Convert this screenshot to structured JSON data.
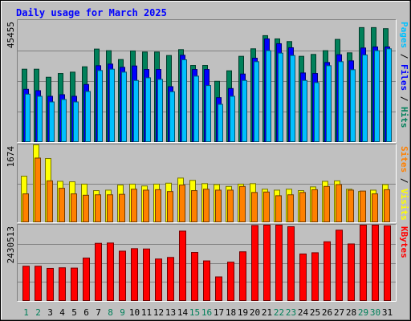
{
  "title": "Daily usage for March 2025",
  "colors": {
    "background": "#c0c0c0",
    "hits": "#00805a",
    "files": "#0000ff",
    "pages": "#00c0ff",
    "visits": "#ffff00",
    "sites": "#ff8000",
    "kbytes": "#ff0000",
    "weekday_label": "#000000",
    "weekend_label": "#00805a"
  },
  "days": [
    "1",
    "2",
    "3",
    "4",
    "5",
    "6",
    "7",
    "8",
    "9",
    "10",
    "11",
    "12",
    "13",
    "14",
    "15",
    "16",
    "17",
    "18",
    "19",
    "20",
    "21",
    "22",
    "23",
    "24",
    "25",
    "26",
    "27",
    "28",
    "29",
    "30",
    "31"
  ],
  "weekend_days": [
    1,
    2,
    8,
    9,
    15,
    16,
    22,
    23,
    29,
    30
  ],
  "chart_data": [
    {
      "type": "bar",
      "panel": "pages-files-hits",
      "ymax_label": "45455",
      "ylim": [
        0,
        45455
      ],
      "legend_labels": [
        "Pages",
        " / ",
        "Files",
        " / ",
        "Hits"
      ],
      "series": [
        {
          "name": "Hits",
          "values": [
            27300,
            27300,
            24300,
            25700,
            26200,
            28200,
            34800,
            34200,
            30900,
            34100,
            33700,
            33700,
            32400,
            34600,
            28700,
            28700,
            22800,
            26700,
            32100,
            34900,
            39800,
            38600,
            37600,
            32100,
            32800,
            34200,
            38400,
            33400,
            42800,
            42800,
            42400
          ]
        },
        {
          "name": "Files",
          "values": [
            19800,
            19300,
            17200,
            17800,
            17200,
            21600,
            28600,
            29200,
            28000,
            28500,
            27200,
            27200,
            20800,
            32500,
            27200,
            27200,
            16700,
            20100,
            25500,
            31400,
            38600,
            36800,
            35300,
            25900,
            25700,
            29800,
            32700,
            30400,
            35200,
            35600,
            35600
          ]
        },
        {
          "name": "Pages",
          "values": [
            18000,
            17200,
            15100,
            16000,
            15100,
            19000,
            26800,
            27300,
            26200,
            23100,
            24100,
            23500,
            18900,
            30800,
            24700,
            21200,
            14200,
            17200,
            23100,
            30100,
            34200,
            33300,
            32400,
            23100,
            22300,
            28600,
            30100,
            27100,
            32600,
            34200,
            34900
          ]
        }
      ]
    },
    {
      "type": "bar",
      "panel": "sites-visits",
      "ymax_label": "1674",
      "ylim": [
        0,
        1674
      ],
      "legend_labels": [
        "Sites",
        " / ",
        "Visits"
      ],
      "series": [
        {
          "name": "Visits",
          "values": [
            1000,
            1674,
            1380,
            890,
            880,
            830,
            690,
            700,
            810,
            830,
            790,
            830,
            850,
            960,
            910,
            840,
            820,
            780,
            830,
            840,
            720,
            700,
            720,
            690,
            770,
            890,
            900,
            720,
            670,
            700,
            820
          ]
        },
        {
          "name": "Sites",
          "values": [
            620,
            1390,
            900,
            740,
            620,
            590,
            600,
            600,
            610,
            720,
            700,
            710,
            670,
            810,
            690,
            720,
            700,
            700,
            780,
            650,
            660,
            580,
            600,
            650,
            710,
            780,
            820,
            700,
            680,
            620,
            710
          ]
        }
      ]
    },
    {
      "type": "bar",
      "panel": "kbytes",
      "ymax_label": "2430513",
      "ylim": [
        0,
        2430513
      ],
      "legend_labels": [
        "KBytes"
      ],
      "series": [
        {
          "name": "KBytes",
          "values": [
            1120000,
            1120000,
            1050000,
            1070000,
            1060000,
            1380000,
            1850000,
            1860000,
            1600000,
            1680000,
            1670000,
            1350000,
            1400000,
            2240000,
            1560000,
            1290000,
            780000,
            1250000,
            1580000,
            2420000,
            2430513,
            2430513,
            2380000,
            1510000,
            1550000,
            1900000,
            2270000,
            1830000,
            2430513,
            2430513,
            2410000
          ]
        }
      ]
    }
  ]
}
